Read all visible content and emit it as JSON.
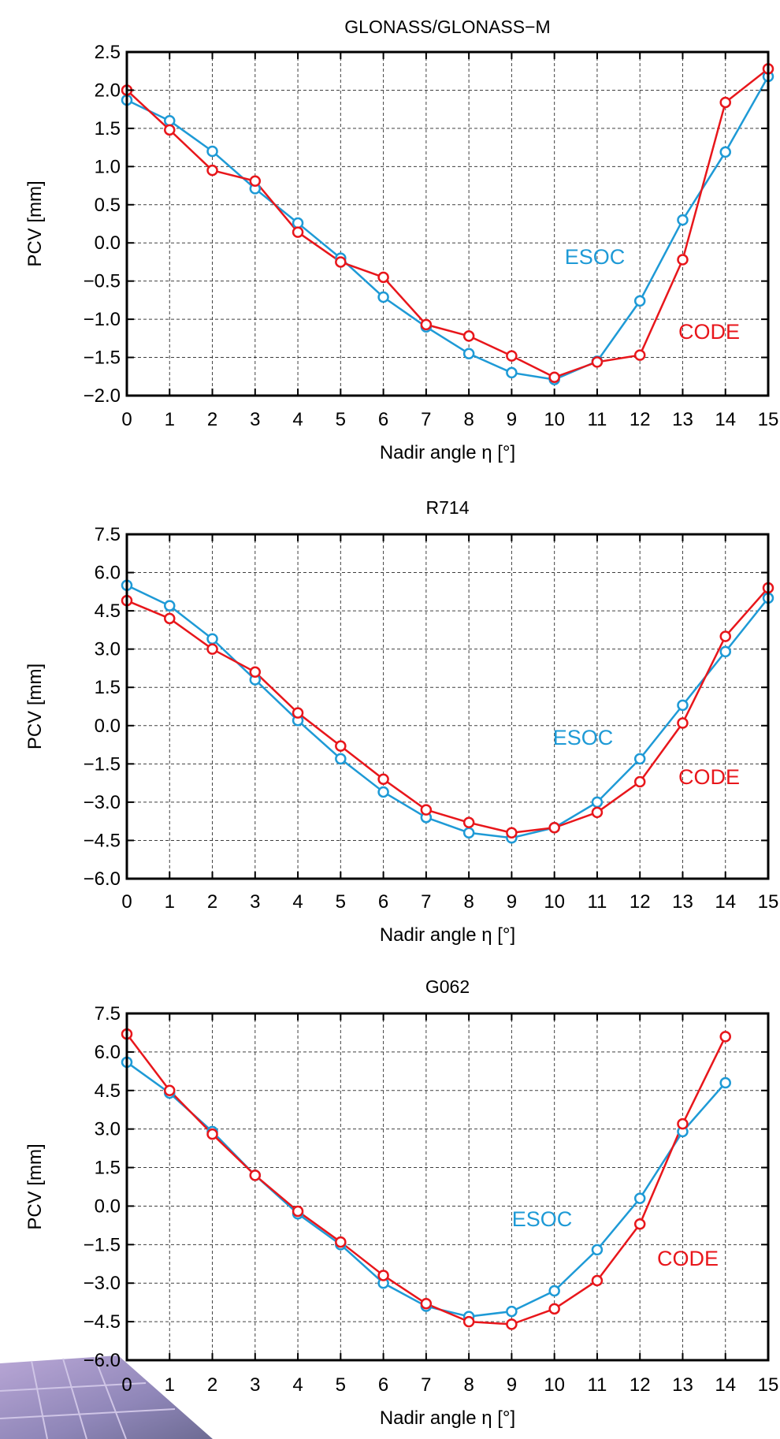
{
  "chart_data": [
    {
      "type": "line",
      "title": "GLONASS/GLONASS−M",
      "xlabel": "Nadir angle η [°]",
      "ylabel": "PCV [mm]",
      "xlim": [
        0,
        15
      ],
      "ylim": [
        -2.0,
        2.5
      ],
      "xticks": [
        "0",
        "1",
        "2",
        "3",
        "4",
        "5",
        "6",
        "7",
        "8",
        "9",
        "10",
        "11",
        "12",
        "13",
        "14",
        "15"
      ],
      "yticks": [
        "−2.0",
        "−1.5",
        "−1.0",
        "−0.5",
        "0.0",
        "0.5",
        "1.0",
        "1.5",
        "2.0",
        "2.5"
      ],
      "grid": true,
      "series": [
        {
          "name": "ESOC",
          "color": "#1e9ad6",
          "x": [
            0,
            1,
            2,
            3,
            4,
            5,
            6,
            7,
            8,
            9,
            10,
            11,
            12,
            13,
            14,
            15
          ],
          "y": [
            1.87,
            1.6,
            1.2,
            0.71,
            0.26,
            -0.2,
            -0.71,
            -1.1,
            -1.45,
            -1.7,
            -1.79,
            -1.55,
            -0.76,
            0.3,
            1.19,
            2.18
          ]
        },
        {
          "name": "CODE",
          "color": "#e8161b",
          "x": [
            0,
            1,
            2,
            3,
            4,
            5,
            6,
            7,
            8,
            9,
            10,
            11,
            12,
            13,
            14,
            15
          ],
          "y": [
            2.0,
            1.48,
            0.95,
            0.81,
            0.14,
            -0.25,
            -0.45,
            -1.07,
            -1.22,
            -1.48,
            -1.76,
            -1.56,
            -1.47,
            -0.22,
            1.84,
            2.28
          ]
        }
      ],
      "annotations": [
        "ESOC",
        "CODE"
      ]
    },
    {
      "type": "line",
      "title": "R714",
      "xlabel": "Nadir angle η [°]",
      "ylabel": "PCV [mm]",
      "xlim": [
        0,
        15
      ],
      "ylim": [
        -6.0,
        7.5
      ],
      "xticks": [
        "0",
        "1",
        "2",
        "3",
        "4",
        "5",
        "6",
        "7",
        "8",
        "9",
        "10",
        "11",
        "12",
        "13",
        "14",
        "15"
      ],
      "yticks": [
        "−6.0",
        "−4.5",
        "−3.0",
        "−1.5",
        "0.0",
        "1.5",
        "3.0",
        "4.5",
        "6.0",
        "7.5"
      ],
      "grid": true,
      "series": [
        {
          "name": "ESOC",
          "color": "#1e9ad6",
          "x": [
            0,
            1,
            2,
            3,
            4,
            5,
            6,
            7,
            8,
            9,
            10,
            11,
            12,
            13,
            14,
            15
          ],
          "y": [
            5.5,
            4.7,
            3.4,
            1.8,
            0.2,
            -1.3,
            -2.6,
            -3.6,
            -4.2,
            -4.4,
            -4.0,
            -3.0,
            -1.3,
            0.8,
            2.9,
            5.0
          ]
        },
        {
          "name": "CODE",
          "color": "#e8161b",
          "x": [
            0,
            1,
            2,
            3,
            4,
            5,
            6,
            7,
            8,
            9,
            10,
            11,
            12,
            13,
            14,
            15
          ],
          "y": [
            4.9,
            4.2,
            3.0,
            2.1,
            0.5,
            -0.8,
            -2.1,
            -3.3,
            -3.8,
            -4.2,
            -4.0,
            -3.4,
            -2.2,
            0.1,
            3.5,
            5.4
          ]
        }
      ],
      "annotations": [
        "ESOC",
        "CODE"
      ]
    },
    {
      "type": "line",
      "title": "G062",
      "xlabel": "Nadir angle η [°]",
      "ylabel": "PCV [mm]",
      "xlim": [
        0,
        15
      ],
      "ylim": [
        -6.0,
        7.5
      ],
      "xticks": [
        "0",
        "1",
        "2",
        "3",
        "4",
        "5",
        "6",
        "7",
        "8",
        "9",
        "10",
        "11",
        "12",
        "13",
        "14",
        "15"
      ],
      "yticks": [
        "−6.0",
        "−4.5",
        "−3.0",
        "−1.5",
        "0.0",
        "1.5",
        "3.0",
        "4.5",
        "6.0",
        "7.5"
      ],
      "grid": true,
      "series": [
        {
          "name": "ESOC",
          "color": "#1e9ad6",
          "x": [
            0,
            1,
            2,
            3,
            4,
            5,
            6,
            7,
            8,
            9,
            10,
            11,
            12,
            13,
            14
          ],
          "y": [
            5.6,
            4.4,
            2.9,
            1.2,
            -0.3,
            -1.5,
            -3.0,
            -3.9,
            -4.3,
            -4.1,
            -3.3,
            -1.7,
            0.3,
            2.9,
            4.8
          ]
        },
        {
          "name": "CODE",
          "color": "#e8161b",
          "x": [
            0,
            1,
            2,
            3,
            4,
            5,
            6,
            7,
            8,
            9,
            10,
            11,
            12,
            13,
            14
          ],
          "y": [
            6.7,
            4.5,
            2.8,
            1.2,
            -0.2,
            -1.4,
            -2.7,
            -3.8,
            -4.5,
            -4.6,
            -4.0,
            -2.9,
            -0.7,
            3.2,
            6.6
          ]
        }
      ],
      "annotations": [
        "ESOC",
        "CODE"
      ]
    }
  ]
}
